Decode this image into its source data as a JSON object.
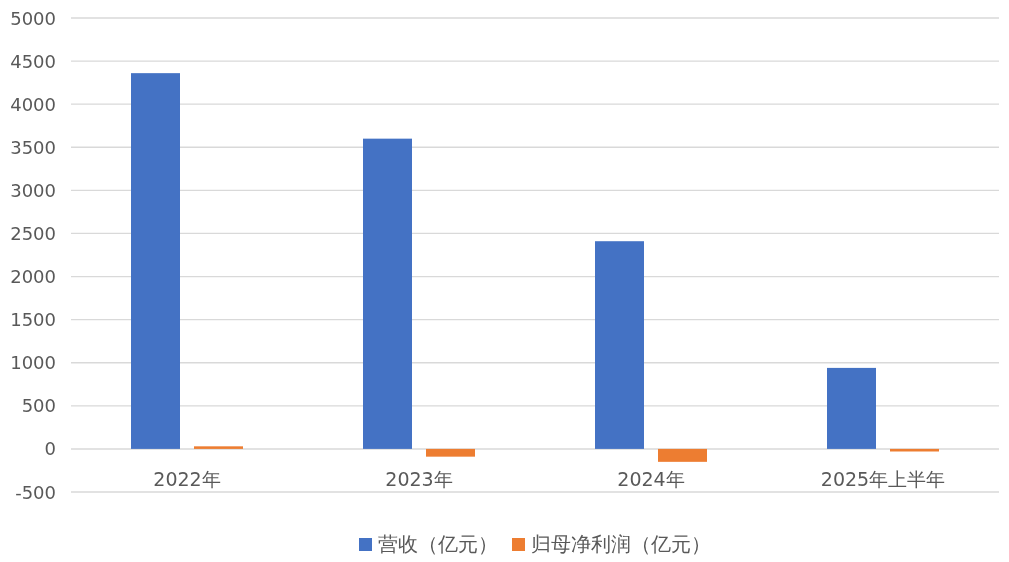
{
  "chart_data": {
    "type": "bar",
    "categories": [
      "2022年",
      "2023年",
      "2024年",
      "2025年上半年"
    ],
    "series": [
      {
        "name": "营收（亿元）",
        "color": "#4472c4",
        "values": [
          4360,
          3600,
          2410,
          940
        ]
      },
      {
        "name": "归母净利润（亿元）",
        "color": "#ed7d31",
        "values": [
          30,
          -90,
          -150,
          -30
        ]
      }
    ],
    "ylim": [
      -500,
      5000
    ],
    "yticks": [
      -500,
      0,
      500,
      1000,
      1500,
      2000,
      2500,
      3000,
      3500,
      4000,
      4500,
      5000
    ],
    "grid": "y",
    "legend": "bottom"
  }
}
